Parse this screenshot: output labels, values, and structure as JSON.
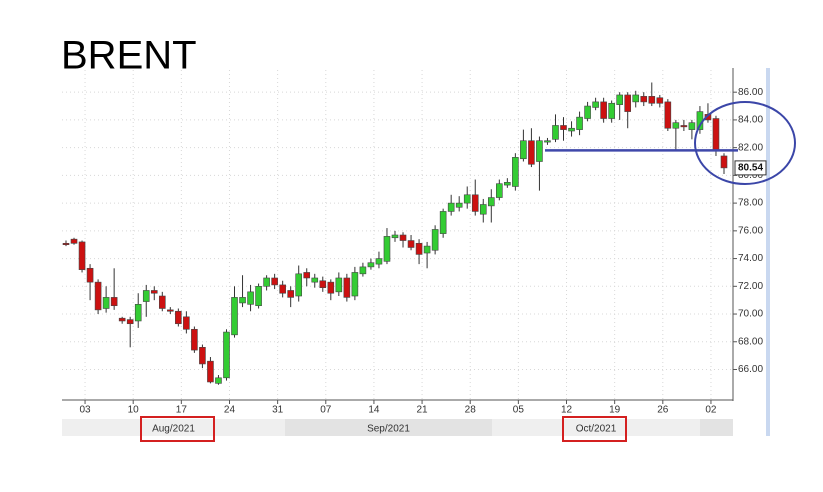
{
  "chart_data": {
    "type": "candlestick",
    "title": "BRENT",
    "categories": [
      null,
      null,
      "03",
      null,
      null,
      null,
      null,
      null,
      "10",
      null,
      null,
      null,
      null,
      null,
      "17",
      null,
      null,
      null,
      null,
      null,
      "24",
      null,
      null,
      null,
      null,
      null,
      "31",
      null,
      null,
      null,
      null,
      null,
      "07",
      null,
      null,
      null,
      null,
      null,
      "14",
      null,
      null,
      null,
      null,
      null,
      "21",
      null,
      null,
      null,
      null,
      null,
      "28",
      null,
      null,
      null,
      null,
      null,
      "05",
      null,
      null,
      null,
      null,
      null,
      "12",
      null,
      null,
      null,
      null,
      null,
      "19",
      null,
      null,
      null,
      null,
      null,
      "26",
      null,
      null,
      null,
      null,
      null,
      "02",
      null,
      null
    ],
    "periods": [
      "Aug/2021",
      "Sep/2021",
      "Oct/2021"
    ],
    "open": [
      75.1,
      75.4,
      75.2,
      73.3,
      72.3,
      70.4,
      71.2,
      69.7,
      69.6,
      69.5,
      70.9,
      71.7,
      71.3,
      70.3,
      70.2,
      69.8,
      68.9,
      67.6,
      66.6,
      65.0,
      65.4,
      68.5,
      70.8,
      70.7,
      70.6,
      72.0,
      72.6,
      72.1,
      71.7,
      71.3,
      73.0,
      72.3,
      72.4,
      72.3,
      71.6,
      72.6,
      71.3,
      72.9,
      73.4,
      73.6,
      73.8,
      75.5,
      75.7,
      75.3,
      75.1,
      74.4,
      74.6,
      75.8,
      77.4,
      77.7,
      78.0,
      78.6,
      77.2,
      77.8,
      78.4,
      79.3,
      79.2,
      81.2,
      82.5,
      81.0,
      82.4,
      82.6,
      83.6,
      83.2,
      83.3,
      84.1,
      84.9,
      85.3,
      84.1,
      85.1,
      85.8,
      85.3,
      85.7,
      85.7,
      85.6,
      85.3,
      83.4,
      83.6,
      83.3,
      83.3,
      84.4,
      84.1,
      81.4
    ],
    "high": [
      75.3,
      75.5,
      75.3,
      73.6,
      72.5,
      72.0,
      73.3,
      69.8,
      69.8,
      71.5,
      72.1,
      72.0,
      71.6,
      70.5,
      70.4,
      70.2,
      69.1,
      67.8,
      66.9,
      65.6,
      68.9,
      72.0,
      72.8,
      72.1,
      72.2,
      72.8,
      72.9,
      72.4,
      72.0,
      73.5,
      73.3,
      72.9,
      72.7,
      72.5,
      73.0,
      72.9,
      73.4,
      73.7,
      74.0,
      74.5,
      76.2,
      76.0,
      75.9,
      75.7,
      75.4,
      75.2,
      76.4,
      77.6,
      78.6,
      78.5,
      79.2,
      79.7,
      78.3,
      79.0,
      79.7,
      79.8,
      81.6,
      83.3,
      83.4,
      82.8,
      82.7,
      84.4,
      84.2,
      83.9,
      84.6,
      85.3,
      85.6,
      85.6,
      85.4,
      86.0,
      86.0,
      86.1,
      86.0,
      86.7,
      85.8,
      85.5,
      84.0,
      84.0,
      84.0,
      85.0,
      85.2,
      84.3,
      81.6
    ],
    "low": [
      74.9,
      75.0,
      73.0,
      71.0,
      70.0,
      70.1,
      70.3,
      69.3,
      67.6,
      69.0,
      69.8,
      71.0,
      70.2,
      70.0,
      69.1,
      68.6,
      67.2,
      66.1,
      65.0,
      64.9,
      65.2,
      68.3,
      70.5,
      70.2,
      70.4,
      71.7,
      71.8,
      71.2,
      70.5,
      70.9,
      72.0,
      71.9,
      71.6,
      71.0,
      71.3,
      70.9,
      71.0,
      72.7,
      73.2,
      73.3,
      73.6,
      75.2,
      74.8,
      74.6,
      73.6,
      73.3,
      74.3,
      75.5,
      77.1,
      77.4,
      77.6,
      77.1,
      76.6,
      76.6,
      78.2,
      79.1,
      78.9,
      81.0,
      80.6,
      78.9,
      82.2,
      82.4,
      82.5,
      82.8,
      82.9,
      83.9,
      84.7,
      83.8,
      83.8,
      84.0,
      83.4,
      84.9,
      85.0,
      85.0,
      84.9,
      83.2,
      81.8,
      83.2,
      82.6,
      83.0,
      83.8,
      81.4,
      80.1
    ],
    "close": [
      75.0,
      75.1,
      73.2,
      72.3,
      70.3,
      71.2,
      70.6,
      69.5,
      69.3,
      70.7,
      71.7,
      71.5,
      70.4,
      70.2,
      69.3,
      68.9,
      67.4,
      66.4,
      65.1,
      65.4,
      68.7,
      71.2,
      71.2,
      71.6,
      72.0,
      72.6,
      72.1,
      71.5,
      71.2,
      72.9,
      72.6,
      72.6,
      71.9,
      71.5,
      72.6,
      71.2,
      73.0,
      73.4,
      73.7,
      74.0,
      75.6,
      75.7,
      75.3,
      74.8,
      74.3,
      74.9,
      76.1,
      77.4,
      78.0,
      78.0,
      78.6,
      77.4,
      77.9,
      78.4,
      79.4,
      79.5,
      81.3,
      82.5,
      80.8,
      82.5,
      82.5,
      83.6,
      83.3,
      83.4,
      84.2,
      85.0,
      85.3,
      84.1,
      85.2,
      85.8,
      84.6,
      85.8,
      85.3,
      85.2,
      85.2,
      83.4,
      83.8,
      83.5,
      83.8,
      84.6,
      84.0,
      81.8,
      80.54
    ],
    "up_color": "#33cc33",
    "down_color": "#cc1111",
    "ylim": [
      63.8,
      87.6
    ],
    "yticks": [
      {
        "value": 66,
        "label": "66.00"
      },
      {
        "value": 68,
        "label": "68.00"
      },
      {
        "value": 70,
        "label": "70.00"
      },
      {
        "value": 72,
        "label": "72.00"
      },
      {
        "value": 74,
        "label": "74.00"
      },
      {
        "value": 76,
        "label": "76.00"
      },
      {
        "value": 78,
        "label": "78.00"
      },
      {
        "value": 80,
        "label": "80.00"
      },
      {
        "value": 82,
        "label": "82.00"
      },
      {
        "value": 84,
        "label": "84.00"
      },
      {
        "value": 86,
        "label": "86.00"
      }
    ],
    "grid": true,
    "reference_line": {
      "value": 81.8,
      "color": "#3f48aa"
    }
  }
}
